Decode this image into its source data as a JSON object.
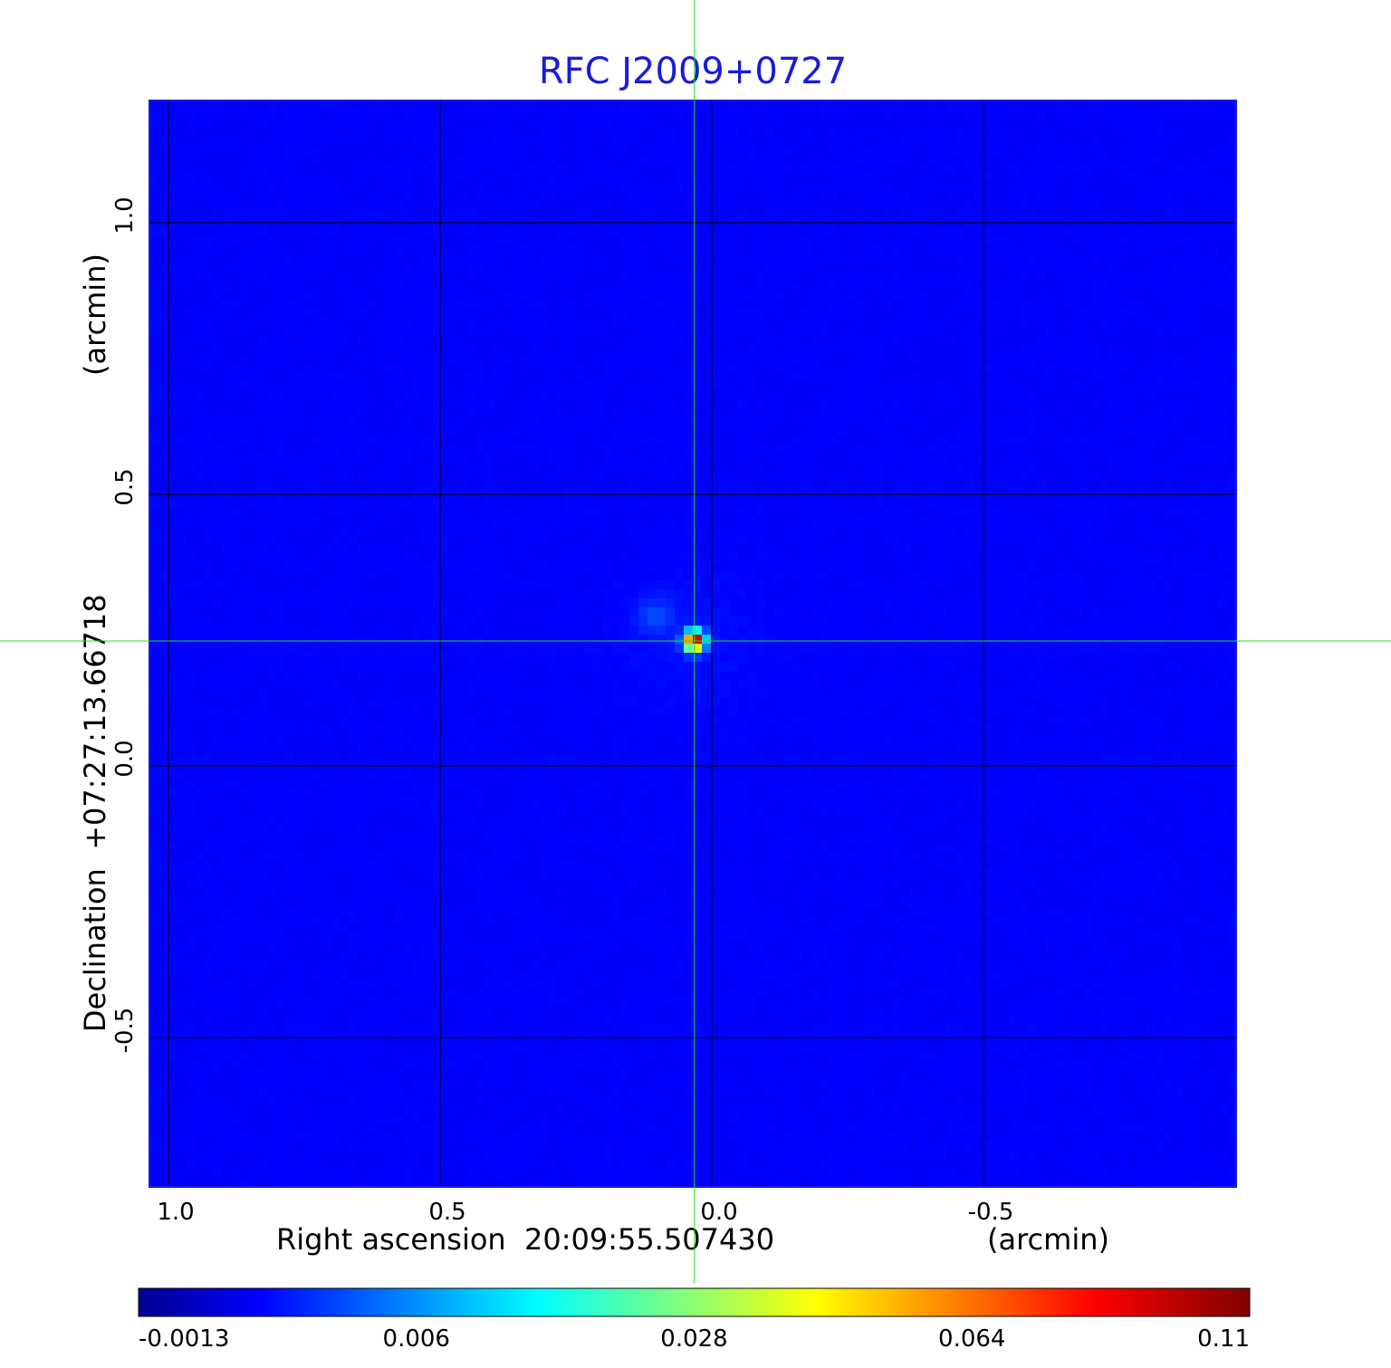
{
  "chart_data": {
    "type": "heatmap",
    "title": "RFC J2009+0727",
    "xlabel": "Right ascension  20:09:55.507430",
    "xlabel_unit": "(arcmin)",
    "ylabel": "Declination  +07:27:13.66718",
    "ylabel_unit": "(arcmin)",
    "x_axis": {
      "ticks": [
        1.0,
        0.5,
        0.0,
        -0.5
      ],
      "tick_labels": [
        "1.0",
        "0.5",
        "0.0",
        "-0.5"
      ],
      "range": [
        1.035,
        -0.965
      ],
      "reversed": true
    },
    "y_axis": {
      "ticks": [
        1.0,
        0.5,
        0.0,
        -0.5
      ],
      "tick_labels": [
        "1.0",
        "0.5",
        "0.0",
        "-0.5"
      ],
      "range": [
        -0.775,
        1.225
      ]
    },
    "grid": true,
    "grid_color": "#000000",
    "crosshair": {
      "x": 0.032,
      "y": 0.23,
      "color": "#22dd22"
    },
    "colormap": "jet",
    "colorbar": {
      "position": "bottom",
      "ticks": [
        -0.0013,
        0.006,
        0.028,
        0.064,
        0.11
      ],
      "tick_labels": [
        "-0.0013",
        "0.006",
        "0.028",
        "0.064",
        "0.11"
      ],
      "range": [
        -0.0013,
        0.11
      ]
    },
    "peak": {
      "x": 0.032,
      "y": 0.23,
      "value": 0.11
    },
    "secondary_feature": {
      "x": 0.105,
      "y": 0.275,
      "value": 0.008
    }
  }
}
